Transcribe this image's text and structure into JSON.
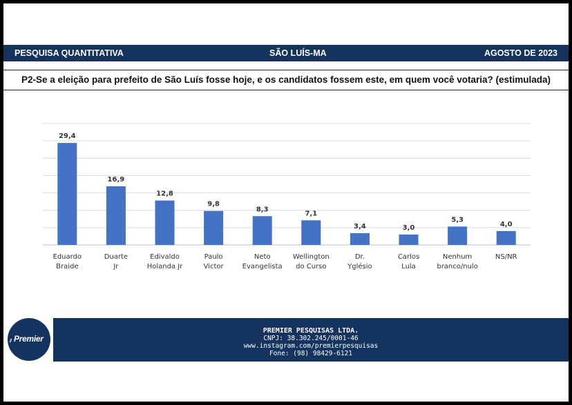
{
  "header": {
    "left": "PESQUISA QUANTITATIVA",
    "center": "SÃO LUÍS-MA",
    "right": "AGOSTO DE 2023"
  },
  "question": "P2-Se a eleição para prefeito de São Luís fosse hoje, e os candidatos fossem este, em quem você votaria? (estimulada)",
  "chart_data": {
    "type": "bar",
    "categories": [
      [
        "Eduardo",
        "Braide"
      ],
      [
        "Duarte",
        "Jr"
      ],
      [
        "Edivaldo",
        "Holanda Jr"
      ],
      [
        "Paulo",
        "Victor"
      ],
      [
        "Neto",
        "Evangelista"
      ],
      [
        "Wellington",
        "do Curso"
      ],
      [
        "Dr.",
        "Yglésio"
      ],
      [
        "Carlos",
        "Lula"
      ],
      [
        "Nenhum",
        "branco/nulo"
      ],
      [
        "NS/NR"
      ]
    ],
    "values": [
      29.4,
      16.9,
      12.8,
      9.8,
      8.3,
      7.1,
      3.4,
      3.0,
      5.3,
      4.0
    ],
    "value_labels": [
      "29,4",
      "16,9",
      "12,8",
      "9,8",
      "8,3",
      "7,1",
      "3,4",
      "3,0",
      "5,3",
      "4,0"
    ],
    "ylim": [
      0,
      35
    ],
    "grid": true,
    "bar_color": "#4472c4"
  },
  "footer": {
    "company": "PREMIER PESQUISAS LTDA.",
    "cnpj": "CNPJ: 38.302.245/0001-46",
    "instagram": "www.instagram.com/premierpesquisas",
    "phone": "Fone: (98) 98429-6121"
  },
  "logo": {
    "text": "Premier"
  }
}
